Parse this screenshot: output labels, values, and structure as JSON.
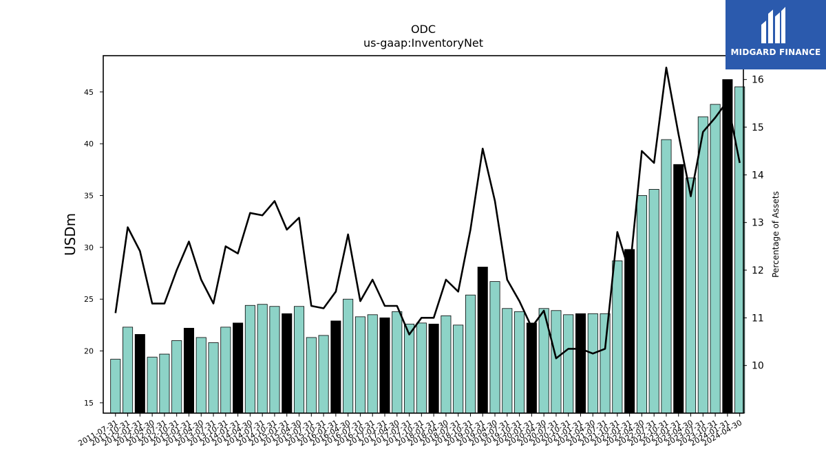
{
  "chart_data": {
    "type": "bar",
    "title": "ODC",
    "subtitle": "us-gaap:InventoryNet",
    "ylabel": "USDm",
    "y2label": "Percentage of Assets",
    "ylim": [
      14,
      48.5
    ],
    "y2lim": [
      9,
      16.5
    ],
    "yticks": [
      15,
      20,
      25,
      30,
      35,
      40,
      45
    ],
    "y2ticks": [
      10,
      11,
      12,
      13,
      14,
      15,
      16
    ],
    "bar_color": "#8dd3c7",
    "highlight_color": "#000000",
    "line_color": "#000000",
    "categories": [
      "2011-07-31",
      "2011-10-31",
      "2012-01-31",
      "2012-04-30",
      "2012-07-31",
      "2012-10-31",
      "2013-01-31",
      "2013-04-30",
      "2013-07-31",
      "2013-10-31",
      "2014-01-31",
      "2014-04-30",
      "2014-07-31",
      "2014-10-31",
      "2015-01-31",
      "2015-04-30",
      "2015-07-31",
      "2015-10-31",
      "2016-01-31",
      "2016-04-30",
      "2016-07-31",
      "2016-10-31",
      "2017-01-31",
      "2017-04-30",
      "2017-07-31",
      "2017-10-31",
      "2018-01-31",
      "2018-04-30",
      "2018-07-31",
      "2018-10-31",
      "2019-01-31",
      "2019-04-30",
      "2019-07-31",
      "2019-10-31",
      "2020-01-31",
      "2020-04-30",
      "2020-07-31",
      "2020-10-31",
      "2021-01-31",
      "2021-04-30",
      "2021-07-31",
      "2021-10-31",
      "2022-01-31",
      "2022-04-30",
      "2022-07-31",
      "2022-10-31",
      "2023-01-31",
      "2023-04-30",
      "2023-07-31",
      "2023-10-31",
      "2024-01-31",
      "2024-04-30"
    ],
    "visible_tick_labels": [
      "2011-07-31",
      "2011-10-31",
      "2012-01-31",
      "2012-04-30",
      "2012-07-31",
      "2012-10-31",
      "2013-01-31",
      "2013-04-30",
      "2013-07-31",
      "2013-10-31",
      "2014-01-31",
      "2014-04-30",
      "2014-07-31",
      "2014-10-31",
      "2015-01-31",
      "2015-04-30",
      "2015-07-31",
      "2015-10-31",
      "2016-01-31",
      "2016-04-30",
      "2016-07-31",
      "2016-10-31",
      "2017-01-31",
      "2017-04-30",
      "2017-07-31",
      "2017-10-31",
      "2018-01-31",
      "2018-04-30",
      "2018-07-31",
      "2018-10-31",
      "2019-01-31",
      "2019-04-30",
      "2019-07-31",
      "2019-10-31",
      "2020-01-31",
      "2020-04-30",
      "2020-07-31",
      "2020-10-31",
      "2021-01-31",
      "2021-04-30",
      "2021-07-31",
      "2021-10-31",
      "2022-01-31",
      "2022-04-30",
      "2022-07-31",
      "2022-10-31",
      "2023-01-31",
      "2023-04-30",
      "2023-07-31",
      "2023-10-31",
      "2024-01-31",
      "2024-04-30"
    ],
    "series": [
      {
        "type": "bar",
        "values": [
          19.2,
          22.3,
          21.6,
          19.4,
          19.7,
          21.0,
          22.2,
          21.3,
          20.8,
          22.3,
          22.7,
          24.4,
          24.5,
          24.3,
          23.6,
          24.3,
          21.3,
          21.5,
          22.9,
          25.0,
          23.3,
          23.5,
          23.2,
          23.8,
          22.6,
          22.7,
          22.6,
          23.4,
          22.5,
          25.4,
          28.1,
          26.7,
          24.1,
          23.8,
          22.7,
          24.1,
          23.9,
          23.5,
          23.6,
          23.6,
          23.6,
          28.7,
          29.8,
          35.0,
          35.6,
          40.4,
          38.0,
          36.7,
          42.6,
          43.8,
          46.2,
          45.5
        ],
        "highlight": [
          false,
          false,
          true,
          false,
          false,
          false,
          true,
          false,
          false,
          false,
          true,
          false,
          false,
          false,
          true,
          false,
          false,
          false,
          true,
          false,
          false,
          false,
          true,
          false,
          false,
          false,
          true,
          false,
          false,
          false,
          true,
          false,
          false,
          false,
          true,
          false,
          false,
          false,
          true,
          false,
          false,
          false,
          true,
          false,
          false,
          false,
          true,
          false,
          false,
          false,
          true,
          false
        ]
      },
      {
        "type": "line",
        "axis": "right",
        "values": [
          11.1,
          12.9,
          12.4,
          11.3,
          11.3,
          12.0,
          12.6,
          11.8,
          11.3,
          12.5,
          12.35,
          13.2,
          13.15,
          13.45,
          12.85,
          13.1,
          11.25,
          11.2,
          11.55,
          12.75,
          11.35,
          11.8,
          11.25,
          11.25,
          10.65,
          11.0,
          11.0,
          11.8,
          11.55,
          12.85,
          14.55,
          13.45,
          11.8,
          11.35,
          10.8,
          11.15,
          10.15,
          10.35,
          10.35,
          10.25,
          10.35,
          12.8,
          11.95,
          14.5,
          14.25,
          16.25,
          14.85,
          13.55,
          14.9,
          15.2,
          15.55,
          14.25
        ]
      }
    ]
  },
  "logo": {
    "text": "MIDGARD FINANCE"
  }
}
